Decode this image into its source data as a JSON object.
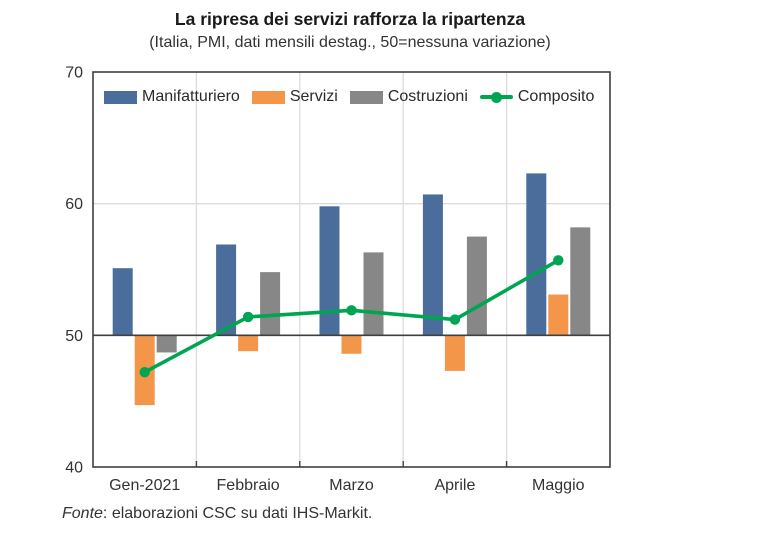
{
  "page": {
    "title": "La ripresa dei servizi rafforza la ripartenza",
    "subtitle": "(Italia, PMI, dati mensili destag., 50=nessuna variazione)",
    "footer": {
      "prefix": "Fonte",
      "text": ": elaborazioni CSC su dati IHS-Markit."
    }
  },
  "chart_data": {
    "type": "bar",
    "title": "La ripresa dei servizi rafforza la ripartenza",
    "subtitle": "(Italia, PMI, dati mensili destag., 50=nessuna variazione)",
    "categories": [
      "Gen-2021",
      "Febbraio",
      "Marzo",
      "Aprile",
      "Maggio"
    ],
    "series": [
      {
        "name": "Manifatturiero",
        "type": "bar",
        "color": "#4a6d9b",
        "values": [
          55.1,
          56.9,
          59.8,
          60.7,
          62.3
        ]
      },
      {
        "name": "Servizi",
        "type": "bar",
        "color": "#f4964a",
        "values": [
          44.7,
          48.8,
          48.6,
          47.3,
          53.1
        ]
      },
      {
        "name": "Costruzioni",
        "type": "bar",
        "color": "#878787",
        "values": [
          48.7,
          54.8,
          56.3,
          57.5,
          58.2
        ]
      },
      {
        "name": "Composito",
        "type": "line",
        "color": "#00a551",
        "values": [
          47.2,
          51.4,
          51.9,
          51.2,
          55.7
        ]
      }
    ],
    "ylim": [
      40,
      70
    ],
    "yticks": [
      40,
      50,
      60,
      70
    ],
    "baseline": 50,
    "grid": {
      "horizontal_at": [
        60
      ],
      "vertical_between_groups": true
    },
    "legend_position": "top-left-inside",
    "axis_color": "#3f3f3f",
    "gridline_color": "#dcdcdc",
    "tick_label_color": "#333333"
  }
}
